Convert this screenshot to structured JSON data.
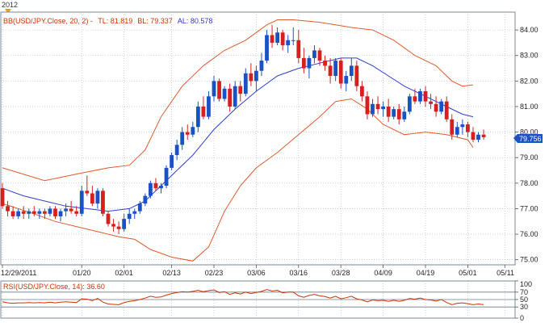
{
  "header": {
    "year": "2012"
  },
  "main_legend": {
    "bb_label": "BB(USD/JPY.Close, 20, 2)",
    "tl_label": "TL: 81.819",
    "bl_label": "BL: 79.337",
    "al_label": "AL: 80.578",
    "bb_color": "#cc3300",
    "tl_color": "#cc3300",
    "bl_color": "#cc3300",
    "al_color": "#3333cc"
  },
  "rsi_legend": {
    "label": "RSI(USD/JPY.Close, 14): 36.60",
    "color": "#cc3300"
  },
  "last_price": "79.756",
  "colors": {
    "up": "#1a52c4",
    "down": "#d62020",
    "upper_band": "#e05a2a",
    "lower_band": "#e05a2a",
    "mid_band": "#2c3fd0",
    "rsi": "#cc3300",
    "price_tag": "#1a52c4"
  },
  "chart_data": [
    {
      "type": "candlestick",
      "title": "",
      "ylim": [
        74.8,
        84.7
      ],
      "y_ticks": [
        "75.00",
        "76.00",
        "77.00",
        "78.00",
        "79.00",
        "80.00",
        "81.00",
        "82.00",
        "83.00",
        "84.00"
      ],
      "x_tick_labels": [
        "12/29/2011",
        "01/20",
        "02/01",
        "02/13",
        "02/23",
        "03/06",
        "03/16",
        "03/28",
        "04/09",
        "04/19",
        "05/01",
        "05/11"
      ],
      "x_tick_index": [
        0,
        15,
        23,
        32,
        40,
        48,
        56,
        64,
        72,
        80,
        88,
        95
      ],
      "grid": true,
      "candles": [
        [
          77.8,
          78.0,
          77.0,
          77.1
        ],
        [
          77.1,
          77.3,
          76.7,
          76.9
        ],
        [
          76.9,
          77.1,
          76.6,
          76.7
        ],
        [
          76.7,
          77.0,
          76.6,
          76.9
        ],
        [
          76.9,
          77.1,
          76.6,
          76.8
        ],
        [
          76.8,
          77.0,
          76.6,
          76.9
        ],
        [
          76.9,
          77.1,
          76.7,
          76.8
        ],
        [
          76.8,
          77.0,
          76.6,
          76.9
        ],
        [
          76.9,
          77.0,
          76.6,
          76.8
        ],
        [
          76.8,
          77.1,
          76.7,
          77.0
        ],
        [
          77.0,
          77.1,
          76.6,
          76.7
        ],
        [
          76.7,
          77.0,
          76.5,
          76.9
        ],
        [
          76.9,
          77.2,
          76.7,
          77.0
        ],
        [
          77.0,
          77.3,
          76.8,
          76.9
        ],
        [
          76.9,
          77.1,
          76.7,
          76.8
        ],
        [
          76.8,
          77.9,
          76.7,
          77.7
        ],
        [
          77.7,
          78.3,
          77.5,
          77.6
        ],
        [
          77.6,
          77.9,
          77.1,
          77.2
        ],
        [
          77.2,
          77.8,
          77.0,
          77.7
        ],
        [
          77.7,
          77.8,
          76.7,
          76.8
        ],
        [
          76.8,
          76.9,
          76.3,
          76.4
        ],
        [
          76.4,
          76.6,
          76.1,
          76.3
        ],
        [
          76.3,
          76.5,
          76.0,
          76.2
        ],
        [
          76.2,
          76.8,
          76.1,
          76.6
        ],
        [
          76.6,
          77.0,
          76.4,
          76.8
        ],
        [
          76.8,
          77.0,
          76.6,
          76.9
        ],
        [
          76.9,
          77.3,
          76.8,
          77.2
        ],
        [
          77.2,
          77.6,
          77.1,
          77.5
        ],
        [
          77.5,
          78.1,
          77.4,
          78.0
        ],
        [
          78.0,
          78.2,
          77.7,
          77.8
        ],
        [
          77.8,
          78.0,
          77.6,
          77.9
        ],
        [
          77.9,
          78.7,
          77.8,
          78.6
        ],
        [
          78.6,
          79.2,
          78.5,
          79.1
        ],
        [
          79.1,
          79.7,
          78.9,
          79.5
        ],
        [
          79.5,
          80.2,
          79.3,
          80.0
        ],
        [
          80.0,
          80.3,
          79.7,
          79.9
        ],
        [
          79.9,
          80.4,
          79.8,
          80.2
        ],
        [
          80.2,
          81.2,
          80.0,
          81.0
        ],
        [
          81.0,
          81.4,
          80.5,
          80.6
        ],
        [
          80.6,
          81.6,
          80.5,
          81.4
        ],
        [
          81.4,
          82.2,
          81.2,
          82.0
        ],
        [
          82.0,
          82.1,
          81.2,
          81.3
        ],
        [
          81.3,
          81.8,
          81.2,
          81.7
        ],
        [
          81.7,
          81.9,
          80.8,
          81.0
        ],
        [
          81.0,
          82.0,
          80.9,
          81.8
        ],
        [
          81.8,
          82.0,
          81.2,
          81.5
        ],
        [
          81.5,
          82.5,
          81.4,
          82.3
        ],
        [
          82.3,
          82.7,
          81.8,
          82.0
        ],
        [
          82.0,
          82.6,
          81.6,
          82.4
        ],
        [
          82.4,
          83.1,
          82.2,
          82.8
        ],
        [
          82.8,
          84.0,
          82.7,
          83.8
        ],
        [
          83.8,
          84.2,
          83.3,
          83.5
        ],
        [
          83.5,
          84.1,
          83.4,
          83.9
        ],
        [
          83.9,
          84.0,
          83.2,
          83.4
        ],
        [
          83.4,
          83.8,
          83.1,
          83.6
        ],
        [
          83.6,
          84.1,
          83.4,
          83.6
        ],
        [
          83.6,
          84.0,
          82.7,
          82.9
        ],
        [
          82.9,
          83.3,
          82.3,
          82.5
        ],
        [
          82.5,
          83.0,
          82.1,
          82.9
        ],
        [
          82.9,
          83.4,
          82.7,
          83.2
        ],
        [
          83.2,
          83.3,
          82.6,
          82.8
        ],
        [
          82.8,
          83.0,
          82.4,
          82.6
        ],
        [
          82.6,
          82.9,
          81.9,
          82.2
        ],
        [
          82.2,
          82.9,
          82.0,
          82.8
        ],
        [
          82.8,
          82.9,
          81.7,
          81.9
        ],
        [
          81.9,
          82.4,
          81.6,
          82.2
        ],
        [
          82.2,
          82.9,
          82.0,
          82.6
        ],
        [
          82.6,
          82.8,
          81.6,
          81.8
        ],
        [
          81.8,
          82.0,
          81.2,
          81.4
        ],
        [
          81.4,
          81.6,
          80.5,
          80.7
        ],
        [
          80.7,
          81.3,
          80.6,
          81.1
        ],
        [
          81.1,
          81.4,
          80.7,
          80.9
        ],
        [
          80.9,
          81.2,
          80.6,
          81.0
        ],
        [
          81.0,
          81.3,
          80.4,
          80.6
        ],
        [
          80.6,
          81.0,
          80.5,
          80.9
        ],
        [
          80.9,
          81.1,
          80.3,
          80.5
        ],
        [
          80.5,
          81.0,
          80.4,
          80.8
        ],
        [
          80.8,
          81.5,
          80.7,
          81.4
        ],
        [
          81.4,
          81.7,
          81.1,
          81.2
        ],
        [
          81.2,
          81.7,
          81.1,
          81.6
        ],
        [
          81.6,
          81.8,
          81.0,
          81.2
        ],
        [
          81.2,
          81.5,
          80.9,
          81.1
        ],
        [
          81.1,
          81.4,
          80.6,
          80.8
        ],
        [
          80.8,
          81.3,
          80.7,
          81.2
        ],
        [
          81.2,
          81.4,
          80.4,
          80.5
        ],
        [
          80.5,
          80.7,
          79.7,
          79.9
        ],
        [
          79.9,
          80.4,
          79.8,
          80.2
        ],
        [
          80.2,
          80.5,
          79.9,
          80.3
        ],
        [
          80.3,
          80.4,
          79.8,
          80.0
        ],
        [
          80.0,
          80.2,
          79.6,
          79.7
        ],
        [
          79.7,
          80.0,
          79.6,
          79.9
        ],
        [
          79.9,
          80.1,
          79.7,
          79.8
        ]
      ],
      "upper_band": [
        [
          0,
          78.6
        ],
        [
          8,
          78.1
        ],
        [
          15,
          78.4
        ],
        [
          20,
          78.6
        ],
        [
          24,
          78.7
        ],
        [
          27,
          79.3
        ],
        [
          30,
          80.6
        ],
        [
          34,
          81.8
        ],
        [
          38,
          82.6
        ],
        [
          42,
          83.2
        ],
        [
          46,
          83.6
        ],
        [
          50,
          84.2
        ],
        [
          52,
          84.4
        ],
        [
          55,
          84.4
        ],
        [
          60,
          84.3
        ],
        [
          63,
          84.2
        ],
        [
          66,
          84.1
        ],
        [
          70,
          84.0
        ],
        [
          74,
          83.6
        ],
        [
          78,
          83.0
        ],
        [
          82,
          82.6
        ],
        [
          85,
          82.0
        ],
        [
          87,
          81.8
        ],
        [
          89,
          81.85
        ]
      ],
      "middle_band": [
        [
          0,
          77.8
        ],
        [
          4,
          77.5
        ],
        [
          8,
          77.3
        ],
        [
          12,
          77.1
        ],
        [
          16,
          77.0
        ],
        [
          20,
          76.9
        ],
        [
          24,
          77.0
        ],
        [
          27,
          77.3
        ],
        [
          30,
          77.9
        ],
        [
          33,
          78.5
        ],
        [
          36,
          79.1
        ],
        [
          40,
          80.1
        ],
        [
          44,
          80.9
        ],
        [
          48,
          81.6
        ],
        [
          52,
          82.2
        ],
        [
          56,
          82.5
        ],
        [
          60,
          82.7
        ],
        [
          64,
          82.9
        ],
        [
          67,
          82.9
        ],
        [
          70,
          82.6
        ],
        [
          73,
          82.2
        ],
        [
          76,
          81.8
        ],
        [
          80,
          81.4
        ],
        [
          84,
          81.0
        ],
        [
          87,
          80.7
        ],
        [
          89,
          80.6
        ]
      ],
      "lower_band": [
        [
          0,
          77.2
        ],
        [
          6,
          76.8
        ],
        [
          10,
          76.5
        ],
        [
          14,
          76.3
        ],
        [
          18,
          76.1
        ],
        [
          22,
          75.9
        ],
        [
          25,
          75.8
        ],
        [
          28,
          75.4
        ],
        [
          32,
          75.1
        ],
        [
          36,
          74.95
        ],
        [
          39,
          75.5
        ],
        [
          42,
          76.9
        ],
        [
          45,
          77.9
        ],
        [
          48,
          78.6
        ],
        [
          52,
          79.2
        ],
        [
          56,
          79.9
        ],
        [
          60,
          80.6
        ],
        [
          63,
          81.2
        ],
        [
          66,
          81.3
        ],
        [
          69,
          80.9
        ],
        [
          72,
          80.3
        ],
        [
          76,
          79.9
        ],
        [
          80,
          80.0
        ],
        [
          84,
          79.9
        ],
        [
          88,
          79.7
        ],
        [
          89,
          79.4
        ]
      ]
    },
    {
      "type": "line",
      "title": "",
      "ylim": [
        0,
        100
      ],
      "y_ticks": [
        "100",
        "70",
        "50",
        "30",
        "0"
      ],
      "series": [
        {
          "values": [
            44,
            41,
            40,
            41,
            41,
            42,
            41,
            42,
            41,
            43,
            41,
            43,
            44,
            43,
            42,
            52,
            51,
            47,
            53,
            43,
            38,
            37,
            36,
            42,
            45,
            47,
            50,
            54,
            59,
            56,
            57,
            62,
            66,
            69,
            71,
            70,
            72,
            75,
            71,
            74,
            76,
            69,
            71,
            64,
            68,
            65,
            70,
            66,
            69,
            72,
            77,
            73,
            75,
            68,
            70,
            70,
            60,
            56,
            61,
            64,
            60,
            58,
            54,
            59,
            52,
            55,
            59,
            52,
            49,
            44,
            49,
            47,
            48,
            45,
            48,
            45,
            48,
            53,
            51,
            54,
            50,
            49,
            46,
            50,
            42,
            36,
            40,
            41,
            39,
            36,
            38,
            36.6
          ]
        }
      ]
    }
  ]
}
